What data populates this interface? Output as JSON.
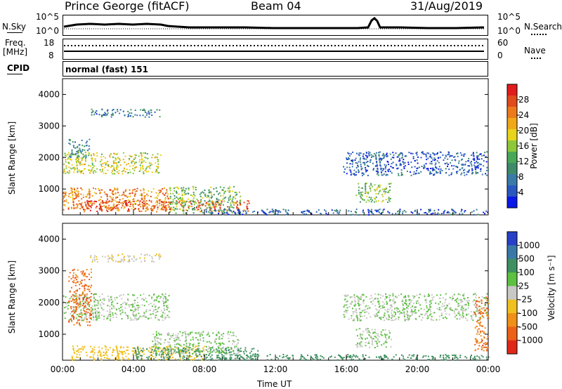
{
  "header": {
    "station": "Prince George (fitACF)",
    "beam": "Beam 04",
    "date": "31/Aug/2019"
  },
  "strip1": {
    "left_label": "N.Sky",
    "left_ticks": [
      "10^5",
      "10^0"
    ],
    "right_label": "N.Search",
    "right_ticks": [
      "10^5",
      "10^0"
    ]
  },
  "strip2": {
    "left_label_1": "Freq.",
    "left_label_2": "[MHz]",
    "left_ticks": [
      "18",
      "8"
    ],
    "right_label": "Nave",
    "right_ticks": [
      "60",
      "0"
    ]
  },
  "cpid": {
    "label": "CPID",
    "value": "normal (fast) 151"
  },
  "chart_data": [
    {
      "type": "heatmap",
      "name": "power",
      "ylabel": "Slant Range [km]",
      "yticks": [
        1000,
        2000,
        3000,
        4000
      ],
      "ylim": [
        180,
        4500
      ],
      "xlim_hours": [
        0,
        24
      ],
      "colorbar_label": "Power [dB]",
      "colorbar_ticks": [
        4,
        8,
        12,
        16,
        20,
        24,
        28
      ],
      "colorbar_colors": [
        "#0a18e8",
        "#2a58c0",
        "#3a7aa8",
        "#3f8a6a",
        "#48a858",
        "#8ec83a",
        "#e8d41a",
        "#f0a818",
        "#ec7a1c",
        "#e04a1c",
        "#e01c1c"
      ],
      "regions": [
        {
          "t0": 0.0,
          "t1": 6.0,
          "r0": 350,
          "r1": 1050,
          "v": 24
        },
        {
          "t0": 1.0,
          "t1": 10.5,
          "r0": 300,
          "r1": 650,
          "v": 27
        },
        {
          "t0": 0.0,
          "t1": 5.5,
          "r0": 1500,
          "r1": 2200,
          "v": 18
        },
        {
          "t0": 0.3,
          "t1": 1.5,
          "r0": 2000,
          "r1": 2600,
          "v": 10
        },
        {
          "t0": 1.5,
          "t1": 5.5,
          "r0": 3300,
          "r1": 3550,
          "v": 8
        },
        {
          "t0": 6.0,
          "t1": 10.0,
          "r0": 250,
          "r1": 1100,
          "v": 14
        },
        {
          "t0": 8.0,
          "t1": 24.0,
          "r0": 200,
          "r1": 380,
          "v": 6
        },
        {
          "t0": 15.8,
          "t1": 24.0,
          "r0": 1450,
          "r1": 2200,
          "v": 6
        },
        {
          "t0": 16.5,
          "t1": 18.5,
          "r0": 600,
          "r1": 1200,
          "v": 14
        }
      ]
    },
    {
      "type": "heatmap",
      "name": "velocity",
      "ylabel": "Slant Range [km]",
      "yticks": [
        1000,
        2000,
        3000,
        4000
      ],
      "ylim": [
        180,
        4500
      ],
      "xlim_hours": [
        0,
        24
      ],
      "xticks": [
        "00:00",
        "04:00",
        "08:00",
        "12:00",
        "16:00",
        "20:00",
        "00:00"
      ],
      "xlabel": "Time UT",
      "colorbar_label": "Velocity [m s⁻¹]",
      "colorbar_ticks": [
        "1000",
        "500",
        "100",
        "25",
        "-25",
        "-100",
        "-500",
        "-1000"
      ],
      "colorbar_colors": [
        "#2840c8",
        "#3a78a8",
        "#3f9060",
        "#5cc040",
        "#c8c8c4",
        "#f0c020",
        "#f09018",
        "#ec6018",
        "#e02818"
      ],
      "regions": [
        {
          "t0": 0.0,
          "t1": 6.0,
          "r0": 1450,
          "r1": 2300,
          "v": 0
        },
        {
          "t0": 0.3,
          "t1": 1.6,
          "r0": 1300,
          "r1": 3100,
          "v": -500
        },
        {
          "t0": 0.5,
          "t1": 8.0,
          "r0": 200,
          "r1": 650,
          "v": -100
        },
        {
          "t0": 4.0,
          "t1": 11.0,
          "r0": 200,
          "r1": 600,
          "v": 100
        },
        {
          "t0": 5.0,
          "t1": 10.0,
          "r0": 400,
          "r1": 1100,
          "v": 0
        },
        {
          "t0": 1.5,
          "t1": 5.5,
          "r0": 3300,
          "r1": 3550,
          "v": -50
        },
        {
          "t0": 15.8,
          "t1": 24.0,
          "r0": 1450,
          "r1": 2300,
          "v": 0
        },
        {
          "t0": 16.5,
          "t1": 18.5,
          "r0": 600,
          "r1": 1200,
          "v": 0
        },
        {
          "t0": 8.0,
          "t1": 24.0,
          "r0": 200,
          "r1": 380,
          "v": 100
        },
        {
          "t0": 23.2,
          "t1": 24.0,
          "r0": 500,
          "r1": 2200,
          "v": -500
        }
      ]
    }
  ]
}
